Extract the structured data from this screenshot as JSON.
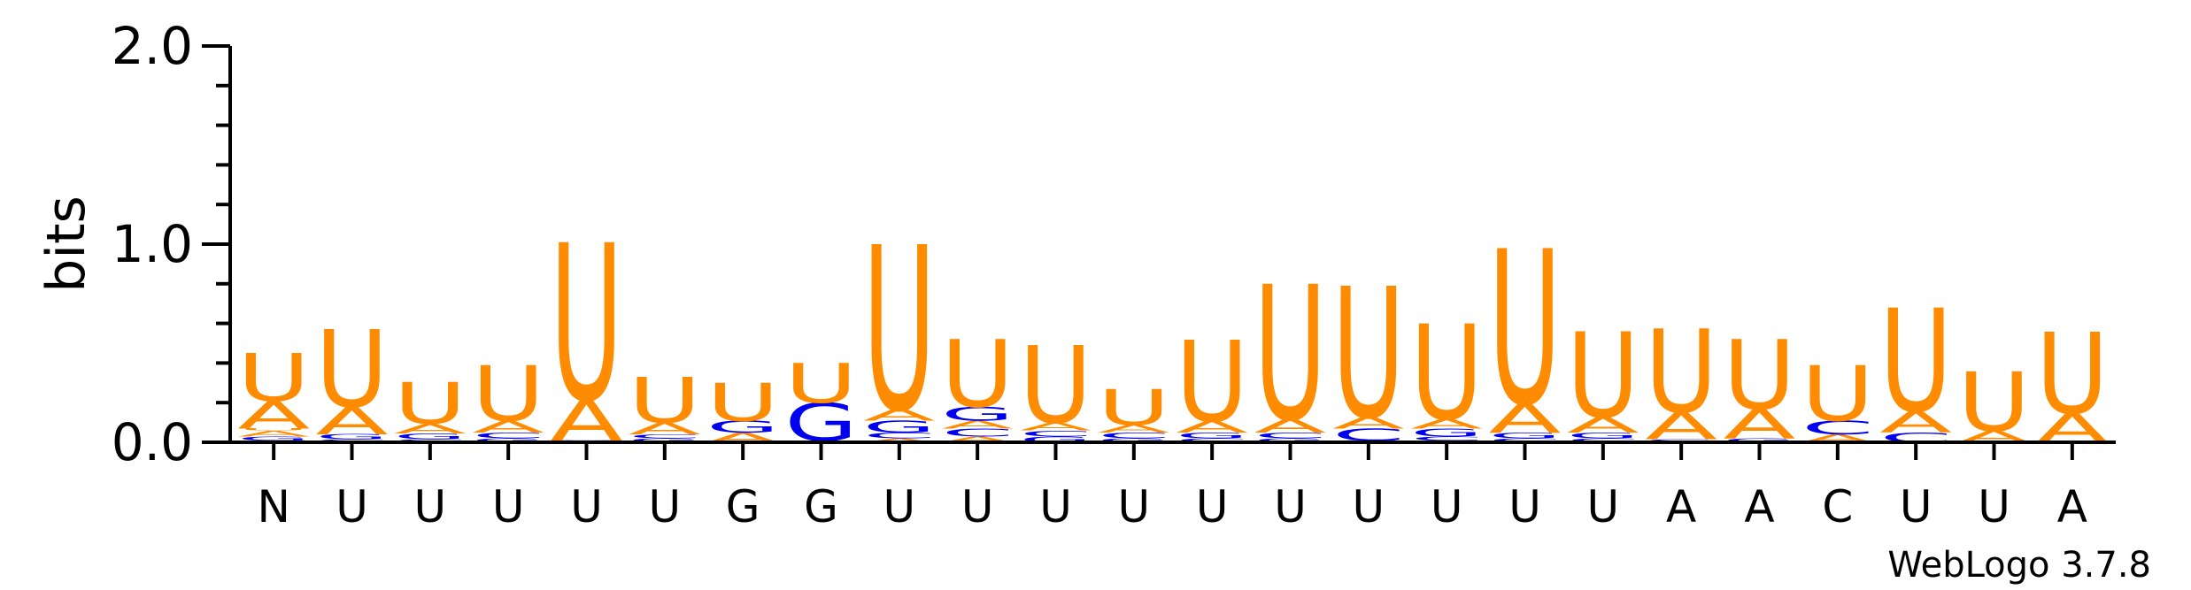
{
  "chart_data": {
    "type": "sequence-logo",
    "ylabel": "bits",
    "ylim": [
      0,
      2.0
    ],
    "yticks": [
      "0.0",
      "1.0",
      "2.0"
    ],
    "colors": {
      "U": "#FF8C00",
      "A": "#FF8C00",
      "G": "#0000EE",
      "C": "#0000EE"
    },
    "positions": [
      {
        "label": "N",
        "letters": [
          [
            "C",
            0.01
          ],
          [
            "G",
            0.02
          ],
          [
            "A",
            0.03
          ],
          [
            "U",
            0.01
          ],
          [
            "A",
            0.14
          ],
          [
            "U",
            0.24
          ]
        ]
      },
      {
        "label": "U",
        "letters": [
          [
            "C",
            0.015
          ],
          [
            "G",
            0.025
          ],
          [
            "A",
            0.14
          ],
          [
            "U",
            0.39
          ]
        ]
      },
      {
        "label": "U",
        "letters": [
          [
            "C",
            0.015
          ],
          [
            "G",
            0.03
          ],
          [
            "A",
            0.05
          ],
          [
            "U",
            0.21
          ]
        ]
      },
      {
        "label": "U",
        "letters": [
          [
            "G",
            0.02
          ],
          [
            "C",
            0.03
          ],
          [
            "A",
            0.06
          ],
          [
            "U",
            0.28
          ]
        ]
      },
      {
        "label": "U",
        "letters": [
          [
            "G",
            0.005
          ],
          [
            "C",
            0.005
          ],
          [
            "A",
            0.21
          ],
          [
            "U",
            0.79
          ]
        ]
      },
      {
        "label": "U",
        "letters": [
          [
            "G",
            0.02
          ],
          [
            "C",
            0.02
          ],
          [
            "A",
            0.06
          ],
          [
            "U",
            0.23
          ]
        ]
      },
      {
        "label": "G",
        "letters": [
          [
            "A",
            0.05
          ],
          [
            "G",
            0.06
          ],
          [
            "U",
            0.19
          ]
        ]
      },
      {
        "label": "G",
        "letters": [
          [
            "A",
            0.01
          ],
          [
            "G",
            0.19
          ],
          [
            "U",
            0.2
          ]
        ]
      },
      {
        "label": "U",
        "letters": [
          [
            "A",
            0.02
          ],
          [
            "C",
            0.03
          ],
          [
            "G",
            0.06
          ],
          [
            "A",
            0.06
          ],
          [
            "U",
            0.83
          ]
        ]
      },
      {
        "label": "U",
        "letters": [
          [
            "A",
            0.03
          ],
          [
            "C",
            0.04
          ],
          [
            "A",
            0.04
          ],
          [
            "G",
            0.07
          ],
          [
            "U",
            0.34
          ]
        ]
      },
      {
        "label": "U",
        "letters": [
          [
            "G",
            0.03
          ],
          [
            "C",
            0.03
          ],
          [
            "A",
            0.04
          ],
          [
            "U",
            0.39
          ]
        ]
      },
      {
        "label": "U",
        "letters": [
          [
            "G",
            0.02
          ],
          [
            "C",
            0.03
          ],
          [
            "A",
            0.04
          ],
          [
            "U",
            0.18
          ]
        ]
      },
      {
        "label": "U",
        "letters": [
          [
            "C",
            0.02
          ],
          [
            "G",
            0.03
          ],
          [
            "A",
            0.06
          ],
          [
            "U",
            0.41
          ]
        ]
      },
      {
        "label": "U",
        "letters": [
          [
            "G",
            0.02
          ],
          [
            "C",
            0.03
          ],
          [
            "A",
            0.07
          ],
          [
            "U",
            0.68
          ]
        ]
      },
      {
        "label": "U",
        "letters": [
          [
            "G",
            0.01
          ],
          [
            "C",
            0.06
          ],
          [
            "A",
            0.06
          ],
          [
            "U",
            0.66
          ]
        ]
      },
      {
        "label": "U",
        "letters": [
          [
            "G",
            0.01
          ],
          [
            "C",
            0.02
          ],
          [
            "G",
            0.04
          ],
          [
            "A",
            0.05
          ],
          [
            "U",
            0.48
          ]
        ]
      },
      {
        "label": "U",
        "letters": [
          [
            "C",
            0.02
          ],
          [
            "G",
            0.03
          ],
          [
            "A",
            0.15
          ],
          [
            "U",
            0.78
          ]
        ]
      },
      {
        "label": "U",
        "letters": [
          [
            "C",
            0.02
          ],
          [
            "G",
            0.03
          ],
          [
            "A",
            0.08
          ],
          [
            "U",
            0.43
          ]
        ]
      },
      {
        "label": "A",
        "letters": [
          [
            "G",
            0.015
          ],
          [
            "A",
            0.14
          ],
          [
            "U",
            0.42
          ]
        ]
      },
      {
        "label": "A",
        "letters": [
          [
            "G",
            0.02
          ],
          [
            "A",
            0.15
          ],
          [
            "U",
            0.35
          ]
        ]
      },
      {
        "label": "C",
        "letters": [
          [
            "A",
            0.04
          ],
          [
            "C",
            0.07
          ],
          [
            "U",
            0.28
          ]
        ]
      },
      {
        "label": "U",
        "letters": [
          [
            "C",
            0.05
          ],
          [
            "A",
            0.11
          ],
          [
            "U",
            0.52
          ]
        ]
      },
      {
        "label": "U",
        "letters": [
          [
            "A",
            0.06
          ],
          [
            "U",
            0.3
          ]
        ]
      },
      {
        "label": "A",
        "letters": [
          [
            "A",
            0.15
          ],
          [
            "U",
            0.41
          ]
        ]
      }
    ]
  },
  "footer": {
    "credit": "WebLogo 3.7.8"
  }
}
